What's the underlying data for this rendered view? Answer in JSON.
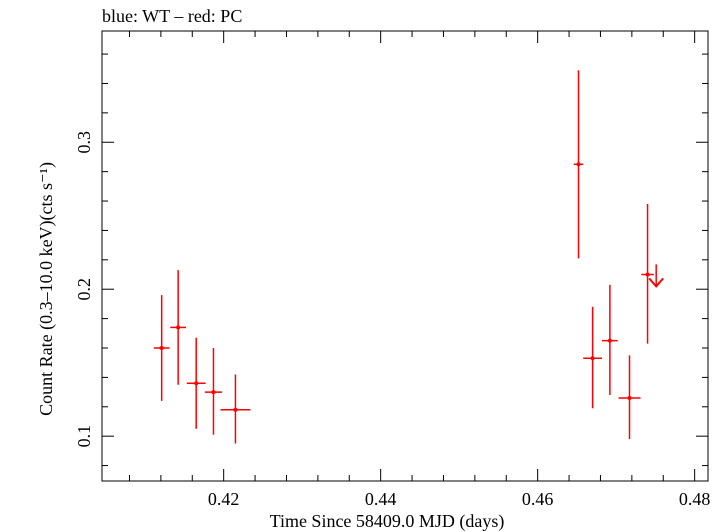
{
  "chart_data": {
    "type": "scatter",
    "title": "blue: WT – red: PC",
    "xlabel": "Time Since 58409.0 MJD (days)",
    "ylabel": "Count Rate (0.3–10.0 keV)(cts s⁻¹)",
    "xlim": [
      0.4045,
      0.4817
    ],
    "ylim": [
      0.0695,
      0.3757
    ],
    "x_ticks": [
      0.42,
      0.44,
      0.46,
      0.48
    ],
    "x_tick_labels": [
      "0.42",
      "0.44",
      "0.46",
      "0.48"
    ],
    "y_ticks": [
      0.1,
      0.2,
      0.3
    ],
    "y_tick_labels": [
      "0.1",
      "0.2",
      "0.3"
    ],
    "grid": false,
    "series": [
      {
        "color": "#ff0000",
        "points": [
          {
            "x": 0.4121,
            "y": 0.16,
            "xerr": 0.001,
            "ylow": 0.124,
            "yhigh": 0.196
          },
          {
            "x": 0.4142,
            "y": 0.174,
            "xerr": 0.001,
            "ylow": 0.135,
            "yhigh": 0.213
          },
          {
            "x": 0.4165,
            "y": 0.136,
            "xerr": 0.0012,
            "ylow": 0.105,
            "yhigh": 0.167
          },
          {
            "x": 0.4187,
            "y": 0.13,
            "xerr": 0.0011,
            "ylow": 0.101,
            "yhigh": 0.16
          },
          {
            "x": 0.4215,
            "y": 0.118,
            "xerr": 0.0019,
            "ylow": 0.095,
            "yhigh": 0.142
          },
          {
            "x": 0.4652,
            "y": 0.285,
            "xerr": 0.0006,
            "ylow": 0.221,
            "yhigh": 0.349
          },
          {
            "x": 0.467,
            "y": 0.153,
            "xerr": 0.0012,
            "ylow": 0.119,
            "yhigh": 0.188
          },
          {
            "x": 0.4692,
            "y": 0.165,
            "xerr": 0.001,
            "ylow": 0.128,
            "yhigh": 0.203
          },
          {
            "x": 0.4717,
            "y": 0.126,
            "xerr": 0.0014,
            "ylow": 0.098,
            "yhigh": 0.155
          },
          {
            "x": 0.474,
            "y": 0.21,
            "xerr": 0.0008,
            "ylow": 0.163,
            "yhigh": 0.258
          }
        ],
        "upper_limits": [
          {
            "x": 0.4751,
            "y": 0.206
          }
        ]
      }
    ]
  }
}
